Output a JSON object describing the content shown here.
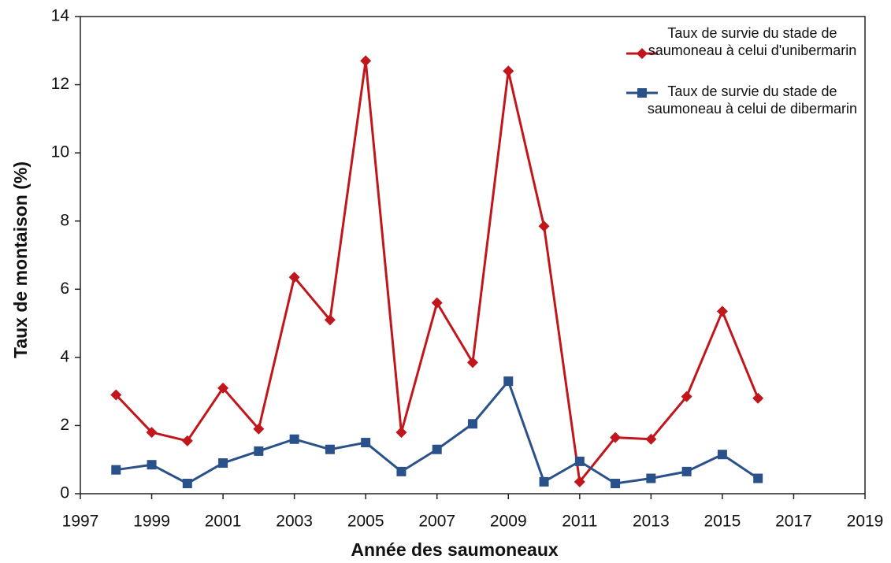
{
  "chart_data": {
    "type": "line",
    "x_label": "Année des saumoneaux",
    "y_label": "Taux de montaison (%)",
    "x": [
      1998,
      1999,
      2000,
      2001,
      2002,
      2003,
      2004,
      2005,
      2006,
      2007,
      2008,
      2009,
      2010,
      2011,
      2012,
      2013,
      2014,
      2015,
      2016
    ],
    "series": [
      {
        "name": "Taux de survie du stade de saumoneau à celui d'unibermarin",
        "color": "#c0161c",
        "marker": "diamond",
        "values": [
          2.9,
          1.8,
          1.55,
          3.1,
          1.9,
          6.35,
          5.1,
          12.7,
          1.8,
          5.6,
          3.85,
          12.4,
          7.85,
          0.35,
          1.65,
          1.6,
          2.85,
          5.35,
          2.8
        ]
      },
      {
        "name": "Taux de survie du stade de saumoneau à celui de dibermarin",
        "color": "#2a5189",
        "marker": "square",
        "values": [
          0.7,
          0.85,
          0.3,
          0.9,
          1.25,
          1.6,
          1.3,
          1.5,
          0.65,
          1.3,
          2.05,
          3.3,
          0.35,
          0.95,
          0.3,
          0.45,
          0.65,
          1.15,
          0.45
        ]
      }
    ],
    "xlim": [
      1997,
      2019
    ],
    "xticks": [
      1997,
      1999,
      2001,
      2003,
      2005,
      2007,
      2009,
      2011,
      2013,
      2015,
      2017,
      2019
    ],
    "ylim": [
      0,
      14
    ],
    "yticks": [
      0,
      2,
      4,
      6,
      8,
      10,
      12,
      14
    ],
    "grid": false,
    "legend": "upper right"
  }
}
